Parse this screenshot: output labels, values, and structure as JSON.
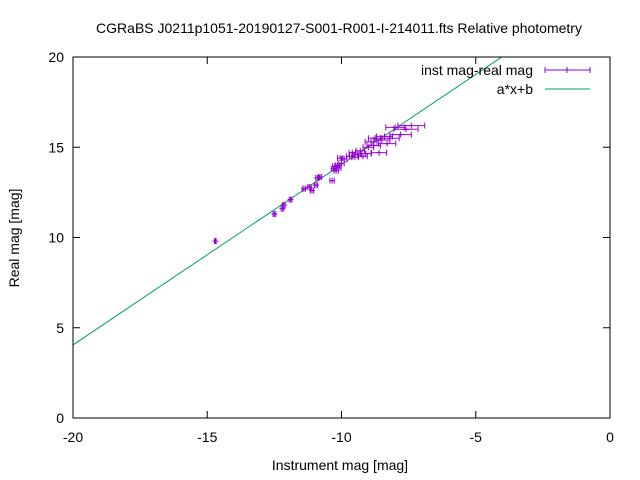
{
  "chart_data": {
    "type": "scatter",
    "title": "CGRaBS J0211p1051-20190127-S001-R001-I-214011.fts Relative photometry",
    "xlabel": "Instrument mag [mag]",
    "ylabel": "Real mag [mag]",
    "xlim": [
      -20,
      0
    ],
    "ylim": [
      0,
      20
    ],
    "x_ticks": [
      "-20",
      "-15",
      "-10",
      "-5",
      "0"
    ],
    "y_ticks": [
      "0",
      "5",
      "10",
      "15",
      "20"
    ],
    "grid": false,
    "legend_position": "top-right",
    "series": [
      {
        "name": "inst mag-real mag",
        "kind": "points-with-x-errorbars",
        "color": "#9400d3",
        "points": [
          {
            "x": -14.7,
            "y": 9.8,
            "xerr": 0.03
          },
          {
            "x": -12.5,
            "y": 11.3,
            "xerr": 0.05
          },
          {
            "x": -12.2,
            "y": 11.6,
            "xerr": 0.05
          },
          {
            "x": -12.15,
            "y": 11.8,
            "xerr": 0.05
          },
          {
            "x": -11.9,
            "y": 12.1,
            "xerr": 0.05
          },
          {
            "x": -11.4,
            "y": 12.7,
            "xerr": 0.06
          },
          {
            "x": -11.2,
            "y": 12.8,
            "xerr": 0.06
          },
          {
            "x": -11.1,
            "y": 12.6,
            "xerr": 0.06
          },
          {
            "x": -10.95,
            "y": 12.9,
            "xerr": 0.06
          },
          {
            "x": -10.9,
            "y": 13.3,
            "xerr": 0.06
          },
          {
            "x": -10.8,
            "y": 13.35,
            "xerr": 0.06
          },
          {
            "x": -10.35,
            "y": 13.15,
            "xerr": 0.08
          },
          {
            "x": -10.3,
            "y": 13.8,
            "xerr": 0.08
          },
          {
            "x": -10.25,
            "y": 13.95,
            "xerr": 0.08
          },
          {
            "x": -10.2,
            "y": 13.7,
            "xerr": 0.08
          },
          {
            "x": -10.15,
            "y": 14.0,
            "xerr": 0.08
          },
          {
            "x": -10.1,
            "y": 13.85,
            "xerr": 0.08
          },
          {
            "x": -10.05,
            "y": 14.4,
            "xerr": 0.1
          },
          {
            "x": -10.0,
            "y": 14.1,
            "xerr": 0.1
          },
          {
            "x": -9.9,
            "y": 14.35,
            "xerr": 0.1
          },
          {
            "x": -9.7,
            "y": 14.5,
            "xerr": 0.12
          },
          {
            "x": -9.6,
            "y": 14.7,
            "xerr": 0.12
          },
          {
            "x": -9.5,
            "y": 14.45,
            "xerr": 0.12
          },
          {
            "x": -9.4,
            "y": 14.6,
            "xerr": 0.14
          },
          {
            "x": -9.3,
            "y": 14.8,
            "xerr": 0.16
          },
          {
            "x": -9.2,
            "y": 14.5,
            "xerr": 0.16
          },
          {
            "x": -9.1,
            "y": 14.65,
            "xerr": 0.2
          },
          {
            "x": -9.0,
            "y": 15.0,
            "xerr": 0.2
          },
          {
            "x": -8.9,
            "y": 15.3,
            "xerr": 0.22
          },
          {
            "x": -8.8,
            "y": 15.1,
            "xerr": 0.25
          },
          {
            "x": -8.75,
            "y": 15.5,
            "xerr": 0.25
          },
          {
            "x": -8.6,
            "y": 14.7,
            "xerr": 0.28
          },
          {
            "x": -8.5,
            "y": 15.4,
            "xerr": 0.3
          },
          {
            "x": -8.4,
            "y": 15.6,
            "xerr": 0.3
          },
          {
            "x": -8.3,
            "y": 15.2,
            "xerr": 0.32
          },
          {
            "x": -8.2,
            "y": 15.5,
            "xerr": 0.35
          },
          {
            "x": -8.0,
            "y": 16.1,
            "xerr": 0.35
          },
          {
            "x": -7.8,
            "y": 15.7,
            "xerr": 0.4
          },
          {
            "x": -7.6,
            "y": 16.0,
            "xerr": 0.45
          },
          {
            "x": -7.4,
            "y": 16.2,
            "xerr": 0.5
          }
        ]
      },
      {
        "name": "a*x+b",
        "kind": "line",
        "color": "#009e73",
        "a": 0.999,
        "b": 24.03
      }
    ]
  }
}
